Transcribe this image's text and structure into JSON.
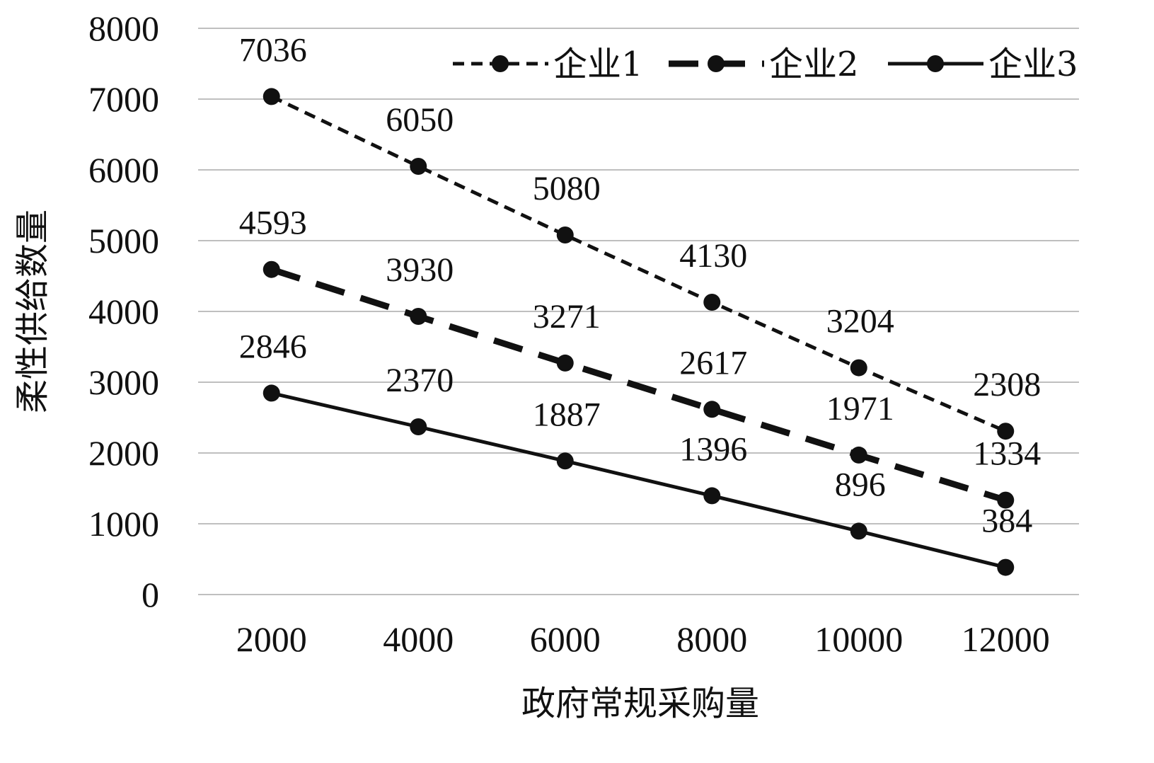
{
  "chart_data": {
    "type": "line",
    "title": "",
    "xlabel": "政府常规采购量",
    "ylabel": "柔性供给数量",
    "x": [
      2000,
      4000,
      6000,
      8000,
      10000,
      12000
    ],
    "x_tick_labels": [
      "2000",
      "4000",
      "6000",
      "8000",
      "10000",
      "12000"
    ],
    "ylim": [
      0,
      8000
    ],
    "y_ticks": [
      0,
      1000,
      2000,
      3000,
      4000,
      5000,
      6000,
      7000,
      8000
    ],
    "y_tick_labels": [
      "0",
      "1000",
      "2000",
      "3000",
      "4000",
      "5000",
      "6000",
      "7000",
      "8000"
    ],
    "grid": true,
    "legend_position": "top-right",
    "series": [
      {
        "name": "企业1",
        "line_style": "short-dash",
        "values": [
          7036,
          6050,
          5080,
          4130,
          3204,
          2308
        ],
        "labels": [
          "7036",
          "6050",
          "5080",
          "4130",
          "3204",
          "2308"
        ]
      },
      {
        "name": "企业2",
        "line_style": "long-dash",
        "values": [
          4593,
          3930,
          3271,
          2617,
          1971,
          1334
        ],
        "labels": [
          "4593",
          "3930",
          "3271",
          "2617",
          "1971",
          "1334"
        ]
      },
      {
        "name": "企业3",
        "line_style": "solid",
        "values": [
          2846,
          2370,
          1887,
          1396,
          896,
          384
        ],
        "labels": [
          "2846",
          "2370",
          "1887",
          "1396",
          "896",
          "384"
        ]
      }
    ],
    "colors": {
      "line": "#111111",
      "grid": "#bfbfbf"
    }
  }
}
